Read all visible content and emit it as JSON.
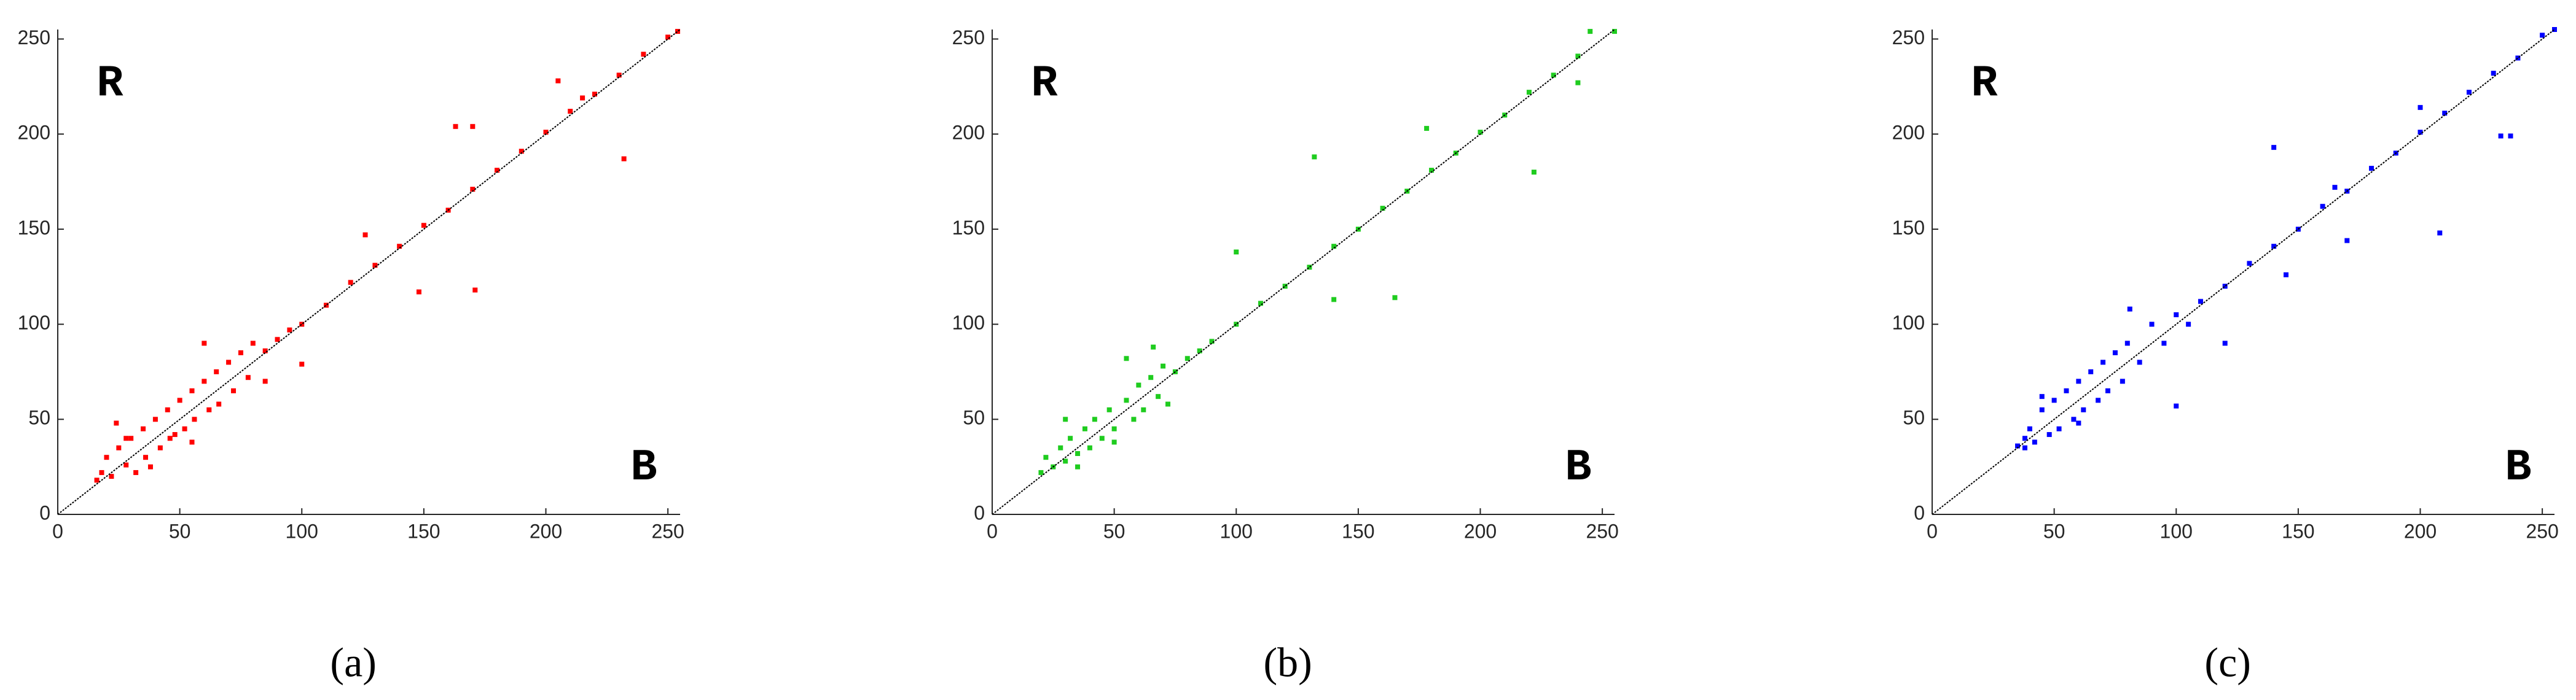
{
  "chart_data": [
    {
      "type": "scatter",
      "caption": "(a)",
      "ylabel": "R",
      "xlabel": "B",
      "xlim": [
        0,
        255
      ],
      "ylim": [
        0,
        255
      ],
      "xticks": [
        0,
        50,
        100,
        150,
        200,
        250
      ],
      "yticks": [
        0,
        50,
        100,
        150,
        200,
        250
      ],
      "series": [
        {
          "color": "#ff0000",
          "x": [
            16,
            18,
            20,
            22,
            25,
            28,
            30,
            32,
            35,
            36,
            40,
            42,
            45,
            46,
            50,
            52,
            55,
            56,
            60,
            62,
            65,
            66,
            70,
            72,
            75,
            78,
            80,
            85,
            90,
            95,
            100,
            110,
            120,
            130,
            140,
            150,
            160,
            170,
            180,
            190,
            200,
            210,
            220,
            230,
            240,
            250,
            254,
            163,
            170,
            232,
            171,
            148,
            126,
            100,
            60,
            48,
            38,
            28,
            24,
            55,
            85,
            205,
            215
          ],
          "y": [
            18,
            22,
            30,
            20,
            35,
            26,
            40,
            22,
            45,
            30,
            50,
            35,
            55,
            40,
            60,
            45,
            65,
            50,
            70,
            55,
            75,
            58,
            80,
            65,
            85,
            72,
            90,
            86,
            92,
            97,
            100,
            110,
            122,
            131,
            141,
            152,
            160,
            171,
            181,
            191,
            201,
            212,
            221,
            231,
            242,
            251,
            254,
            204,
            204,
            187,
            118,
            117,
            147,
            79,
            90,
            42,
            25,
            40,
            48,
            38,
            70,
            228,
            219
          ]
        }
      ]
    },
    {
      "type": "scatter",
      "caption": "(b)",
      "ylabel": "R",
      "xlabel": "B",
      "xlim": [
        0,
        255
      ],
      "ylim": [
        0,
        255
      ],
      "xticks": [
        0,
        50,
        100,
        150,
        200,
        250
      ],
      "yticks": [
        0,
        50,
        100,
        150,
        200,
        250
      ],
      "series": [
        {
          "color": "#1fcc1f",
          "x": [
            20,
            22,
            25,
            28,
            30,
            32,
            35,
            38,
            40,
            42,
            45,
            48,
            50,
            55,
            58,
            60,
            62,
            65,
            68,
            70,
            75,
            80,
            85,
            90,
            100,
            110,
            120,
            130,
            140,
            150,
            160,
            170,
            180,
            190,
            200,
            210,
            220,
            230,
            240,
            245,
            255,
            132,
            222,
            165,
            140,
            100,
            66,
            55,
            30,
            35,
            50,
            72,
            178,
            240
          ],
          "y": [
            22,
            30,
            25,
            35,
            28,
            40,
            32,
            45,
            35,
            50,
            40,
            55,
            45,
            60,
            50,
            68,
            55,
            72,
            62,
            78,
            75,
            82,
            86,
            91,
            100,
            111,
            120,
            130,
            141,
            150,
            161,
            170,
            181,
            190,
            201,
            210,
            222,
            231,
            241,
            254,
            254,
            188,
            180,
            114,
            113,
            138,
            88,
            82,
            50,
            25,
            38,
            58,
            203,
            227
          ]
        }
      ]
    },
    {
      "type": "scatter",
      "caption": "(c)",
      "ylabel": "R",
      "xlabel": "B",
      "xlim": [
        0,
        255
      ],
      "ylim": [
        0,
        255
      ],
      "xticks": [
        0,
        50,
        100,
        150,
        200,
        250
      ],
      "yticks": [
        0,
        50,
        100,
        150,
        200,
        250
      ],
      "series": [
        {
          "color": "#0000ff",
          "x": [
            35,
            38,
            40,
            42,
            45,
            48,
            50,
            52,
            55,
            58,
            60,
            62,
            65,
            68,
            70,
            72,
            75,
            78,
            80,
            85,
            90,
            95,
            100,
            105,
            110,
            120,
            130,
            140,
            150,
            160,
            170,
            180,
            190,
            200,
            210,
            220,
            230,
            240,
            250,
            255,
            140,
            208,
            233,
            237,
            100,
            120,
            81,
            145,
            170,
            60,
            45,
            38,
            165,
            200
          ],
          "y": [
            36,
            40,
            45,
            38,
            55,
            42,
            60,
            45,
            65,
            50,
            70,
            55,
            75,
            60,
            80,
            65,
            85,
            70,
            90,
            80,
            100,
            90,
            105,
            100,
            112,
            120,
            132,
            141,
            150,
            162,
            170,
            182,
            190,
            201,
            211,
            222,
            232,
            240,
            252,
            255,
            193,
            148,
            199,
            199,
            57,
            90,
            108,
            126,
            144,
            48,
            62,
            35,
            172,
            214
          ]
        }
      ]
    }
  ]
}
